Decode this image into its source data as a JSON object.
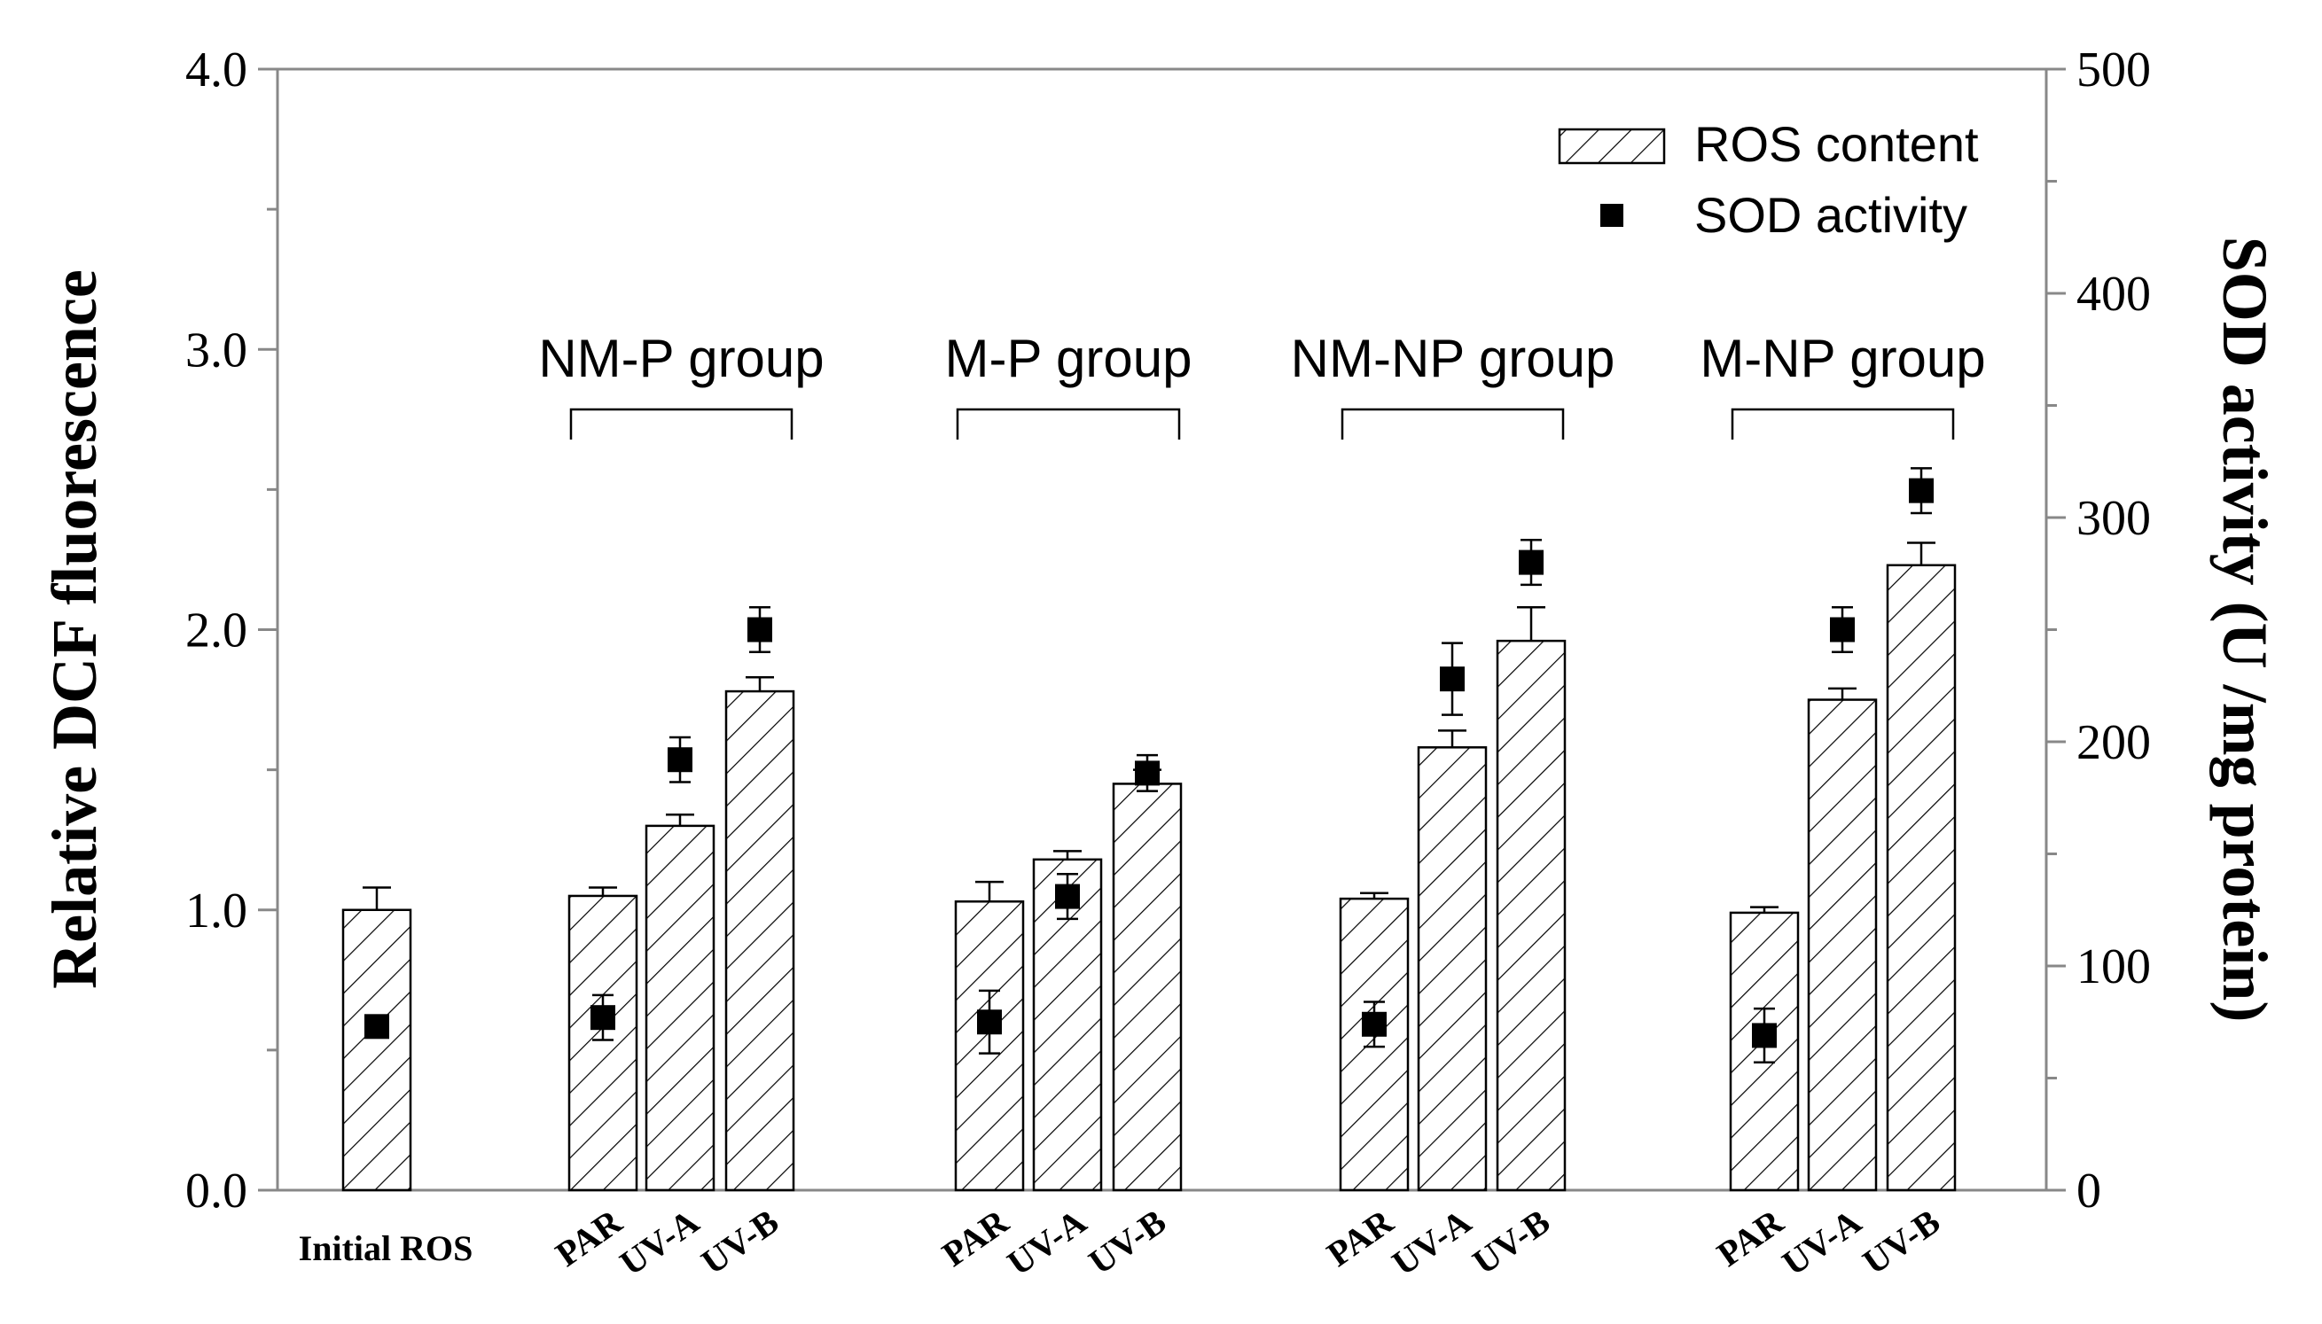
{
  "chart_data": {
    "type": "bar",
    "title": "",
    "categories": [
      "Initial ROS",
      "PAR",
      "UV-A",
      "UV-B",
      "PAR",
      "UV-A",
      "UV-B",
      "PAR",
      "UV-A",
      "UV-B",
      "PAR",
      "UV-A",
      "UV-B"
    ],
    "groups": [
      {
        "label": "NM-P group",
        "first": 1,
        "last": 3
      },
      {
        "label": "M-P group",
        "first": 4,
        "last": 6
      },
      {
        "label": "NM-NP group",
        "first": 7,
        "last": 9
      },
      {
        "label": "M-NP group",
        "first": 10,
        "last": 12
      }
    ],
    "series": [
      {
        "name": "ROS content",
        "kind": "bar",
        "axis": "left",
        "values": [
          1.0,
          1.05,
          1.3,
          1.78,
          1.03,
          1.18,
          1.45,
          1.04,
          1.58,
          1.96,
          0.99,
          1.75,
          2.23
        ],
        "errors": [
          0.08,
          0.03,
          0.04,
          0.05,
          0.07,
          0.03,
          0.05,
          0.02,
          0.06,
          0.12,
          0.02,
          0.04,
          0.08
        ]
      },
      {
        "name": "SOD activity",
        "kind": "marker",
        "axis": "right",
        "values": [
          73,
          77,
          192,
          250,
          75,
          131,
          186,
          74,
          228,
          280,
          69,
          250,
          312
        ],
        "errors": [
          0,
          10,
          10,
          10,
          14,
          10,
          8,
          10,
          16,
          10,
          12,
          10,
          10
        ]
      }
    ],
    "ylabel": "Relative DCF fluorescence",
    "ylim": [
      0,
      4
    ],
    "yticks": [
      "0.0",
      "1.0",
      "2.0",
      "3.0",
      "4.0"
    ],
    "y2label": "SOD activity (U /mg protein)",
    "y2lim": [
      0,
      500
    ],
    "y2ticks": [
      "0",
      "100",
      "200",
      "300",
      "400",
      "500"
    ],
    "legend": {
      "position": "top-right",
      "entries": [
        "ROS content",
        "SOD activity"
      ]
    },
    "colors": {
      "ink": "#000000",
      "axis": "#888888",
      "bar_fill": "#ffffff"
    }
  }
}
